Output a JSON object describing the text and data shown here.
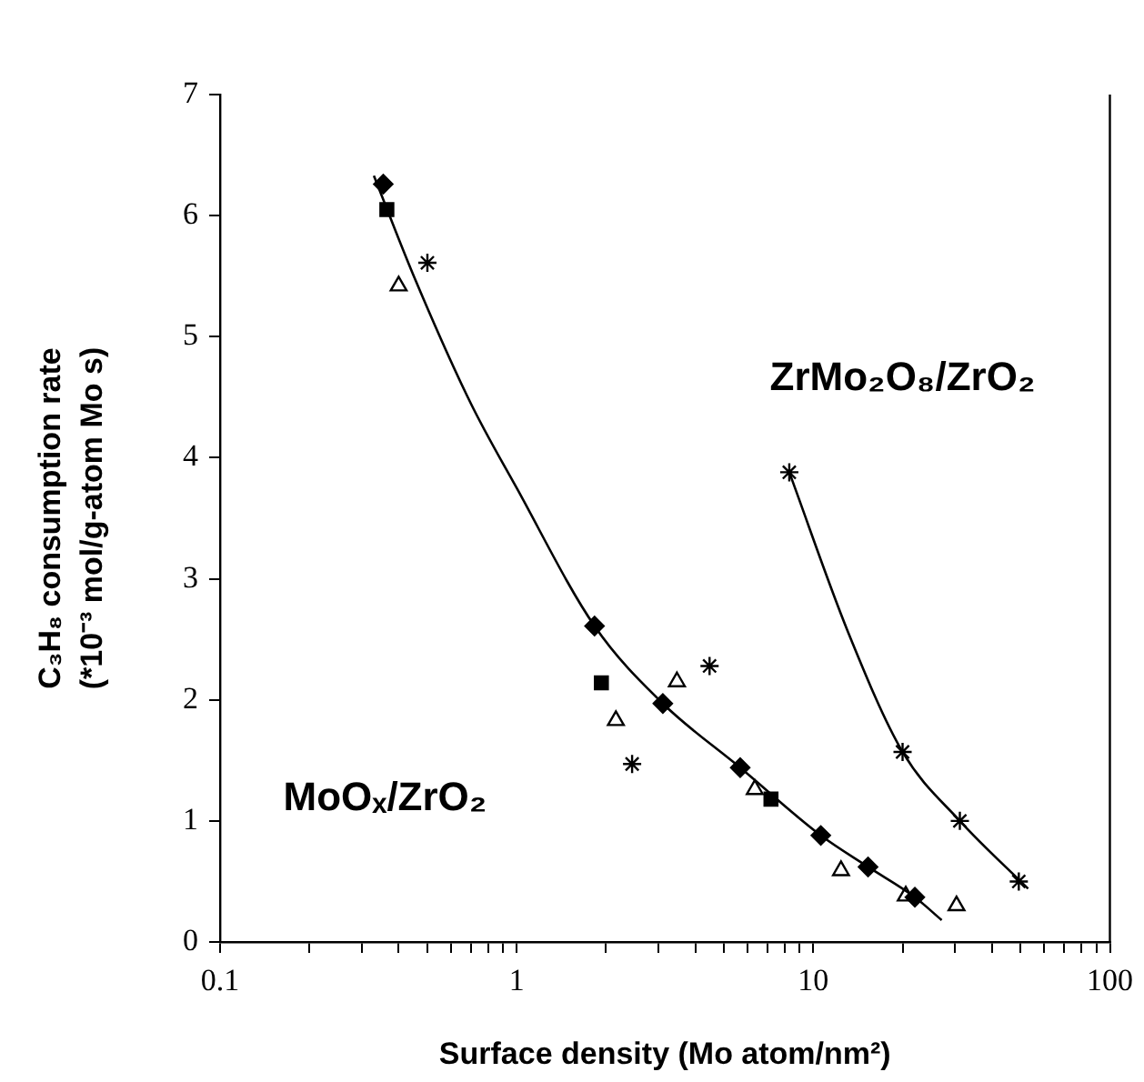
{
  "chart_data": {
    "type": "scatter",
    "xlabel": "Surface density (Mo atom/nm²)",
    "ylabel": "C₃H₈ consumption rate (*10⁻³ mol/g-atom Mo s)",
    "log": "x",
    "grid": false,
    "legend": false,
    "xlim": [
      0.1,
      100
    ],
    "ylim": [
      0,
      7
    ],
    "xticks": [
      0.1,
      {
        "value": 0.2,
        "label": null
      },
      {
        "value": 0.3,
        "label": null
      },
      {
        "value": 0.4,
        "label": null
      },
      {
        "value": 0.5,
        "label": null
      },
      {
        "value": 0.6,
        "label": null
      },
      {
        "value": 0.7,
        "label": null
      },
      {
        "value": 0.8,
        "label": null
      },
      {
        "value": 0.9,
        "label": null
      },
      1,
      {
        "value": 2,
        "label": null
      },
      {
        "value": 3,
        "label": null
      },
      {
        "value": 4,
        "label": null
      },
      {
        "value": 5,
        "label": null
      },
      {
        "value": 6,
        "label": null
      },
      {
        "value": 7,
        "label": null
      },
      {
        "value": 8,
        "label": null
      },
      {
        "value": 9,
        "label": null
      },
      10,
      {
        "value": 20,
        "label": null
      },
      {
        "value": 30,
        "label": null
      },
      {
        "value": 40,
        "label": null
      },
      {
        "value": 50,
        "label": null
      },
      {
        "value": 60,
        "label": null
      },
      {
        "value": 70,
        "label": null
      },
      {
        "value": 80,
        "label": null
      },
      {
        "value": 90,
        "label": null
      },
      100
    ],
    "yticks": [
      0,
      1,
      2,
      3,
      4,
      5,
      6,
      7
    ],
    "series": [
      {
        "type": "line",
        "marker": "none",
        "color": "#000000",
        "x": [
          0.33,
          0.45,
          0.7,
          1.0,
          1.83,
          3.11,
          5.67,
          10.6,
          15.3,
          22.0,
          27.1
        ],
        "values": [
          6.33,
          5.5,
          4.45,
          3.75,
          2.61,
          1.97,
          1.44,
          0.88,
          0.62,
          0.37,
          0.18
        ]
      },
      {
        "type": "line",
        "marker": "none",
        "color": "#000000",
        "x": [
          8.3,
          13.1,
          20.0,
          31.2,
          53
        ],
        "values": [
          3.88,
          2.56,
          1.57,
          1.0,
          0.44
        ]
      },
      {
        "type": "scatter",
        "marker": "diamond",
        "color": "#000000",
        "x": [
          0.355,
          1.83,
          3.11,
          5.67,
          10.6,
          15.3,
          22.0
        ],
        "values": [
          6.26,
          2.61,
          1.97,
          1.44,
          0.88,
          0.62,
          0.37
        ]
      },
      {
        "type": "scatter",
        "marker": "square",
        "color": "#000000",
        "x": [
          0.365,
          1.93,
          7.2
        ],
        "values": [
          6.05,
          2.14,
          1.18
        ]
      },
      {
        "type": "scatter",
        "marker": "triangle",
        "color": "#000000",
        "x": [
          0.4,
          2.16,
          3.47,
          6.35,
          12.4,
          20.5,
          30.4
        ],
        "values": [
          5.42,
          1.83,
          2.15,
          1.26,
          0.59,
          0.38,
          0.3
        ]
      },
      {
        "type": "scatter",
        "marker": "cross",
        "color": "#000000",
        "x": [
          0.5,
          2.45,
          4.47,
          8.3,
          20.0,
          31.2,
          49.3
        ],
        "values": [
          5.61,
          1.47,
          2.28,
          3.88,
          1.57,
          1.0,
          0.5
        ]
      }
    ],
    "annotations": [
      "MoOₓ/ZrO₂",
      "ZrMo₂O₈/ZrO₂"
    ]
  }
}
